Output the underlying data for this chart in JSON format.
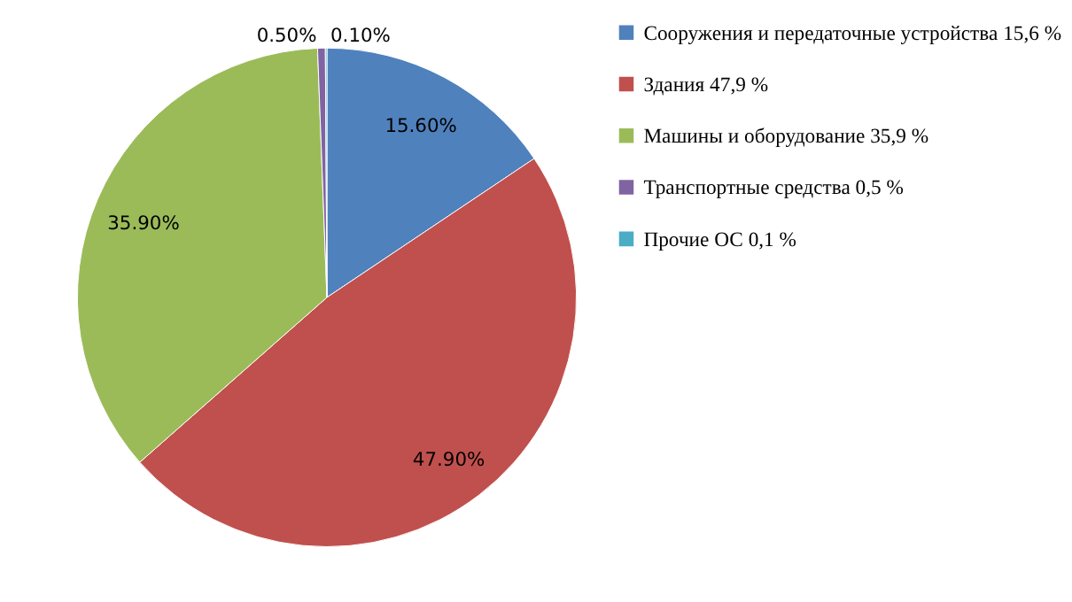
{
  "chart_data": {
    "type": "pie",
    "categories": [
      "Сооружения и передаточные устройства 15,6 %",
      "Здания 47,9 %",
      "Машины и оборудование 35,9 %",
      "Транспортные средства 0,5 %",
      "Прочие ОС 0,1 %"
    ],
    "values": [
      15.6,
      47.9,
      35.9,
      0.5,
      0.1
    ],
    "colors": [
      "#4f81bd",
      "#c0504d",
      "#9bbb59",
      "#8064a2",
      "#4bacc6"
    ],
    "value_labels": [
      "15.60%",
      "47.90%",
      "35.90%",
      "0.50%",
      "0.10%"
    ],
    "legend": "right"
  }
}
